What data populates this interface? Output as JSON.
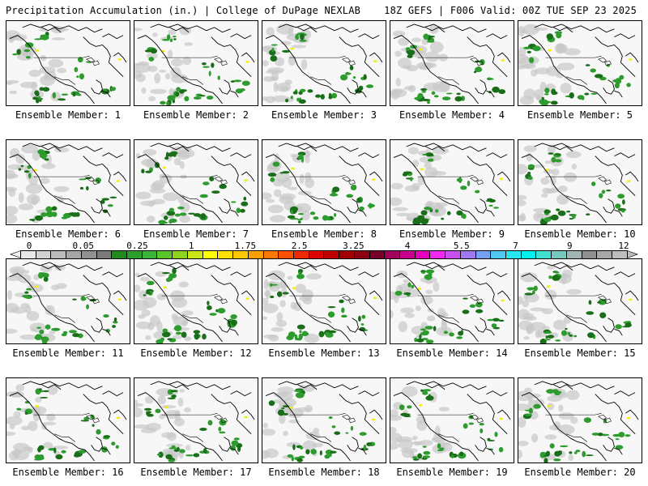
{
  "header": {
    "left": "Precipitation Accumulation (in.) | College of DuPage NEXLAB",
    "right": "18Z GEFS | F006 Valid: 00Z TUE SEP 23 2025"
  },
  "members": [
    {
      "label": "Ensemble Member: 1"
    },
    {
      "label": "Ensemble Member: 2"
    },
    {
      "label": "Ensemble Member: 3"
    },
    {
      "label": "Ensemble Member: 4"
    },
    {
      "label": "Ensemble Member: 5"
    },
    {
      "label": "Ensemble Member: 6"
    },
    {
      "label": "Ensemble Member: 7"
    },
    {
      "label": "Ensemble Member: 8"
    },
    {
      "label": "Ensemble Member: 9"
    },
    {
      "label": "Ensemble Member: 10"
    },
    {
      "label": "Ensemble Member: 11"
    },
    {
      "label": "Ensemble Member: 12"
    },
    {
      "label": "Ensemble Member: 13"
    },
    {
      "label": "Ensemble Member: 14"
    },
    {
      "label": "Ensemble Member: 15"
    },
    {
      "label": "Ensemble Member: 16"
    },
    {
      "label": "Ensemble Member: 17"
    },
    {
      "label": "Ensemble Member: 18"
    },
    {
      "label": "Ensemble Member: 19"
    },
    {
      "label": "Ensemble Member: 20"
    }
  ],
  "colorbar": {
    "tick_labels": [
      "0",
      "0.05",
      "0.25",
      "1",
      "1.75",
      "2.5",
      "3.25",
      "4",
      "5.5",
      "7",
      "9",
      "12"
    ],
    "colors": [
      "#e8e8e8",
      "#d2d2d2",
      "#bcbcbc",
      "#a6a6a6",
      "#909090",
      "#7a7a7a",
      "#1f8a1f",
      "#2aa02a",
      "#3cb43c",
      "#58c628",
      "#8cd21e",
      "#c8e614",
      "#ffff00",
      "#ffe000",
      "#ffc800",
      "#ffa000",
      "#ff7800",
      "#ff5000",
      "#f02800",
      "#dc0000",
      "#c00000",
      "#a00000",
      "#8c0014",
      "#780028",
      "#a0005a",
      "#c8008c",
      "#e600be",
      "#f028f0",
      "#c850f0",
      "#a078f0",
      "#78a0f0",
      "#50c8f0",
      "#28e6f0",
      "#00f0f0",
      "#40e0d0",
      "#78c8c0",
      "#a0b4b4",
      "#909090",
      "#a8a8a8",
      "#bdbdbd"
    ]
  },
  "map_colors": {
    "land": "#f7f7f7",
    "light_precip": "#c8c8c8",
    "green": "#2e9b2e",
    "dark_green": "#1a6e1a",
    "yellow": "#f0f000",
    "border": "#000000"
  }
}
